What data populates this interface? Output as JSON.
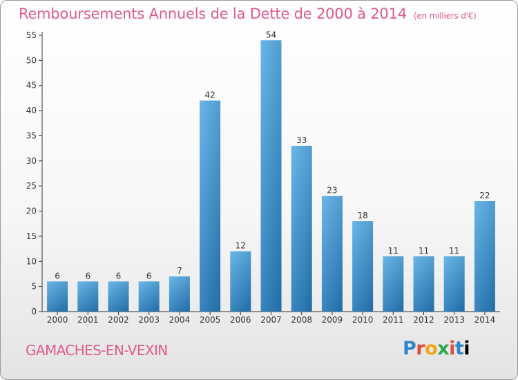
{
  "chart_data": {
    "type": "bar",
    "title": "Remboursements Annuels de la Dette de 2000 à 2014",
    "unit": "(en milliers d'€)",
    "categories": [
      "2000",
      "2001",
      "2002",
      "2003",
      "2004",
      "2005",
      "2006",
      "2007",
      "2008",
      "2009",
      "2010",
      "2011",
      "2012",
      "2013",
      "2014"
    ],
    "values": [
      6,
      6,
      6,
      6,
      7,
      42,
      12,
      54,
      33,
      23,
      18,
      11,
      11,
      11,
      22
    ],
    "ylim": [
      0,
      55
    ],
    "yticks": [
      0,
      5,
      10,
      15,
      20,
      25,
      30,
      35,
      40,
      45,
      50,
      55
    ],
    "grid": false,
    "colors": {
      "bar_top": "#5aaee6",
      "bar_bottom": "#2478b8",
      "title": "#e05a8e"
    }
  },
  "footer": {
    "commune": "GAMACHES-EN-VEXIN",
    "brand_letters": [
      "P",
      "r",
      "o",
      "x",
      "i",
      "t",
      "i"
    ]
  }
}
